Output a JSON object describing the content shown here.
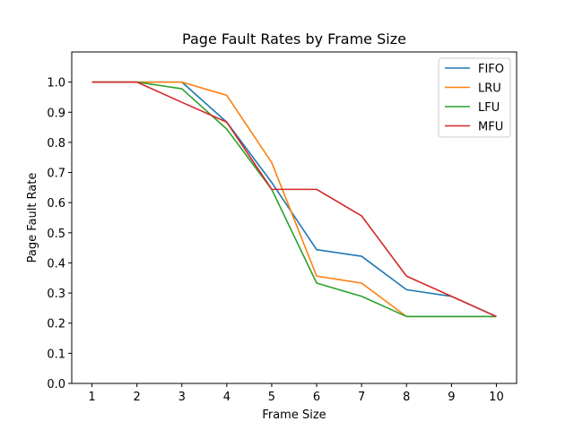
{
  "chart_data": {
    "type": "line",
    "title": "Page Fault Rates by Frame Size",
    "xlabel": "Frame Size",
    "ylabel": "Page Fault Rate",
    "x": [
      1,
      2,
      3,
      4,
      5,
      6,
      7,
      8,
      9,
      10
    ],
    "xticks": [
      "1",
      "2",
      "3",
      "4",
      "5",
      "6",
      "7",
      "8",
      "9",
      "10"
    ],
    "yticks": [
      "0.0",
      "0.1",
      "0.2",
      "0.3",
      "0.4",
      "0.5",
      "0.6",
      "0.7",
      "0.8",
      "0.9",
      "1.0"
    ],
    "xlim": [
      0.55,
      10.45
    ],
    "ylim": [
      0.0,
      1.1
    ],
    "grid": false,
    "legend_position": "top-right",
    "series": [
      {
        "name": "FIFO",
        "color": "#1f77b4",
        "values": [
          1.0,
          1.0,
          1.0,
          0.867,
          0.667,
          0.444,
          0.422,
          0.311,
          0.289,
          0.222
        ]
      },
      {
        "name": "LRU",
        "color": "#ff7f0e",
        "values": [
          1.0,
          1.0,
          1.0,
          0.956,
          0.733,
          0.356,
          0.333,
          0.222,
          0.222,
          0.222
        ]
      },
      {
        "name": "LFU",
        "color": "#2ca02c",
        "values": [
          1.0,
          1.0,
          0.978,
          0.844,
          0.644,
          0.333,
          0.289,
          0.222,
          0.222,
          0.222
        ]
      },
      {
        "name": "MFU",
        "color": "#d62728",
        "values": [
          1.0,
          1.0,
          0.933,
          0.867,
          0.644,
          0.644,
          0.556,
          0.356,
          0.289,
          0.222
        ]
      }
    ]
  }
}
